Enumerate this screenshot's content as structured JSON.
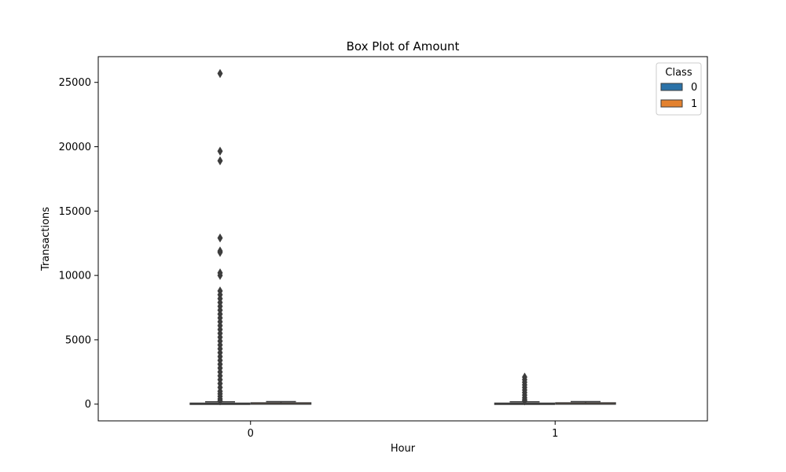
{
  "chart_data": {
    "type": "box",
    "title": "Box Plot of Amount",
    "xlabel": "Hour",
    "ylabel": "Transactions",
    "categories": [
      "0",
      "1"
    ],
    "ylim": [
      -1300,
      27000
    ],
    "yticks": [
      0,
      5000,
      10000,
      15000,
      20000,
      25000
    ],
    "grid": false,
    "legend": {
      "title": "Class",
      "placement": "top-right"
    },
    "series": [
      {
        "name": "0",
        "color": "#2b72a8",
        "boxes": [
          {
            "category": "0",
            "min": 0,
            "q1": 5,
            "median": 20,
            "q3": 75,
            "max": 180,
            "outliers": [
              25691,
              19656,
              18910,
              12910,
              11898,
              11790,
              10199,
              10000,
              8790,
              8500,
              8200,
              7900,
              7600,
              7300,
              7000,
              6700,
              6400,
              6100,
              5800,
              5500,
              5200,
              4900,
              4600,
              4300,
              4000,
              3700,
              3400,
              3100,
              2800,
              2500,
              2200,
              1900,
              1600,
              1300,
              1000,
              800,
              600,
              400,
              250
            ]
          },
          {
            "category": "1",
            "min": 0,
            "q1": 5,
            "median": 20,
            "q3": 75,
            "max": 180,
            "outliers": [
              2100,
              1900,
              1700,
              1500,
              1300,
              1100,
              900,
              700,
              500,
              350,
              250
            ]
          }
        ]
      },
      {
        "name": "1",
        "color": "#e3812e",
        "boxes": [
          {
            "category": "0",
            "min": 0,
            "q1": 1,
            "median": 10,
            "q3": 100,
            "max": 200,
            "outliers": []
          },
          {
            "category": "1",
            "min": 0,
            "q1": 1,
            "median": 10,
            "q3": 100,
            "max": 200,
            "outliers": []
          }
        ]
      }
    ]
  }
}
